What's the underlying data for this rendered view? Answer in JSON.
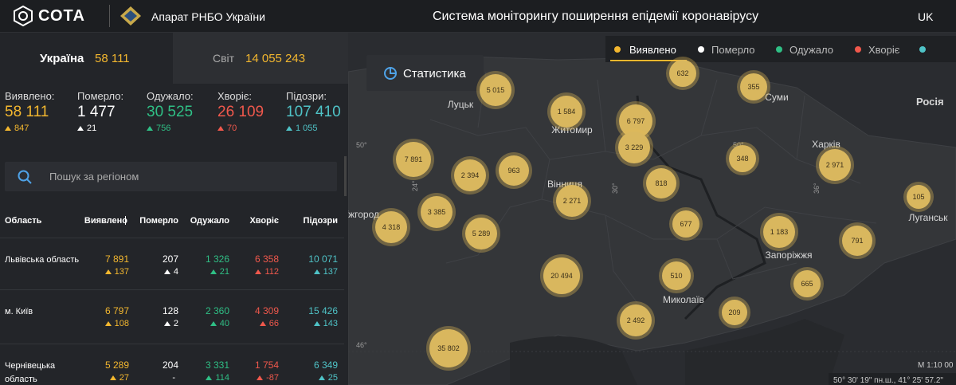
{
  "header": {
    "logo": "СОТА",
    "org": "Апарат РНБО України",
    "title": "Система моніторингу поширення епідемії коронавірусу",
    "lang": "UK"
  },
  "tabs": [
    {
      "label": "Україна",
      "value": "58 111"
    },
    {
      "label": "Світ",
      "value": "14 055 243"
    }
  ],
  "stats": [
    {
      "label": "Виявлено:",
      "value": "58 111",
      "delta": "847"
    },
    {
      "label": "Померло:",
      "value": "1 477",
      "delta": "21"
    },
    {
      "label": "Одужало:",
      "value": "30 525",
      "delta": "756"
    },
    {
      "label": "Хворіє:",
      "value": "26 109",
      "delta": "70"
    },
    {
      "label": "Підозри:",
      "value": "107 410",
      "delta": "1 055"
    }
  ],
  "search": {
    "placeholder": "Пошук за регіоном"
  },
  "table": {
    "columns": [
      "Область",
      "Виявлено",
      "Померло",
      "Одужало",
      "Хворіє",
      "Підозри"
    ],
    "rows": [
      {
        "region": "Львівська область",
        "cells": [
          [
            "7 891",
            "137"
          ],
          [
            "207",
            "4"
          ],
          [
            "1 326",
            "21"
          ],
          [
            "6 358",
            "112"
          ],
          [
            "10 071",
            "137"
          ]
        ]
      },
      {
        "region": "м. Київ",
        "cells": [
          [
            "6 797",
            "108"
          ],
          [
            "128",
            "2"
          ],
          [
            "2 360",
            "40"
          ],
          [
            "4 309",
            "66"
          ],
          [
            "15 426",
            "143"
          ]
        ]
      },
      {
        "region": "Чернівецька область",
        "cells": [
          [
            "5 289",
            "27"
          ],
          [
            "204",
            "-"
          ],
          [
            "3 331",
            "114"
          ],
          [
            "1 754",
            "-87"
          ],
          [
            "6 349",
            "25"
          ]
        ]
      }
    ]
  },
  "map": {
    "button": "Статистика",
    "legend": [
      "Виявлено",
      "Померло",
      "Одужало",
      "Хворіє"
    ],
    "places": [
      "Луцьк",
      "Житомир",
      "Суми",
      "Росія",
      "Харків",
      "Вінниця",
      "Луганськ",
      "Запоріжжя",
      "Миколаїв",
      "Ужгород"
    ],
    "graticule": [
      "50°",
      "24°",
      "30°",
      "50°",
      "36°",
      "46°"
    ],
    "clusters": [
      "632",
      "355",
      "5 015",
      "1 584",
      "6 797",
      "3 229",
      "7 891",
      "2 394",
      "963",
      "348",
      "2 971",
      "818",
      "2 271",
      "105",
      "3 385",
      "4 318",
      "5 289",
      "677",
      "1 183",
      "791",
      "20 494",
      "510",
      "665",
      "2 492",
      "209",
      "35 802"
    ],
    "scale": "M 1:10 00",
    "coords": "50° 30' 19\" пн.ш., 41° 25' 57.2\""
  }
}
